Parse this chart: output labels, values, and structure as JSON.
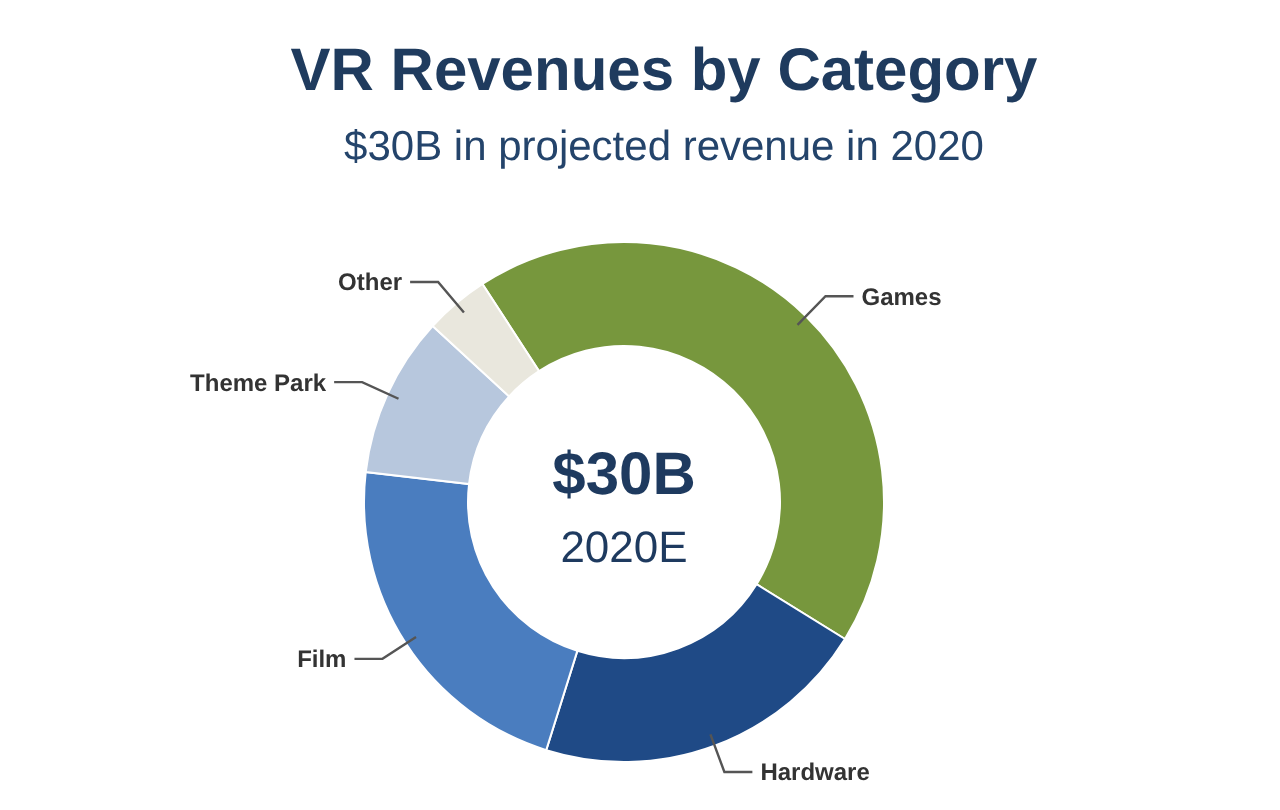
{
  "chart_data": {
    "type": "donut",
    "title": "VR Revenues by Category",
    "subtitle": "$30B in projected revenue in 2020",
    "categories": [
      "Games",
      "Hardware",
      "Film",
      "Theme Park",
      "Other"
    ],
    "values": [
      43,
      21,
      22,
      10,
      4
    ],
    "colors": [
      "#77973d",
      "#1f4a86",
      "#4a7dbf",
      "#b7c7dd",
      "#e9e7dd"
    ],
    "annotations": [
      "$30B",
      "2020E"
    ]
  }
}
